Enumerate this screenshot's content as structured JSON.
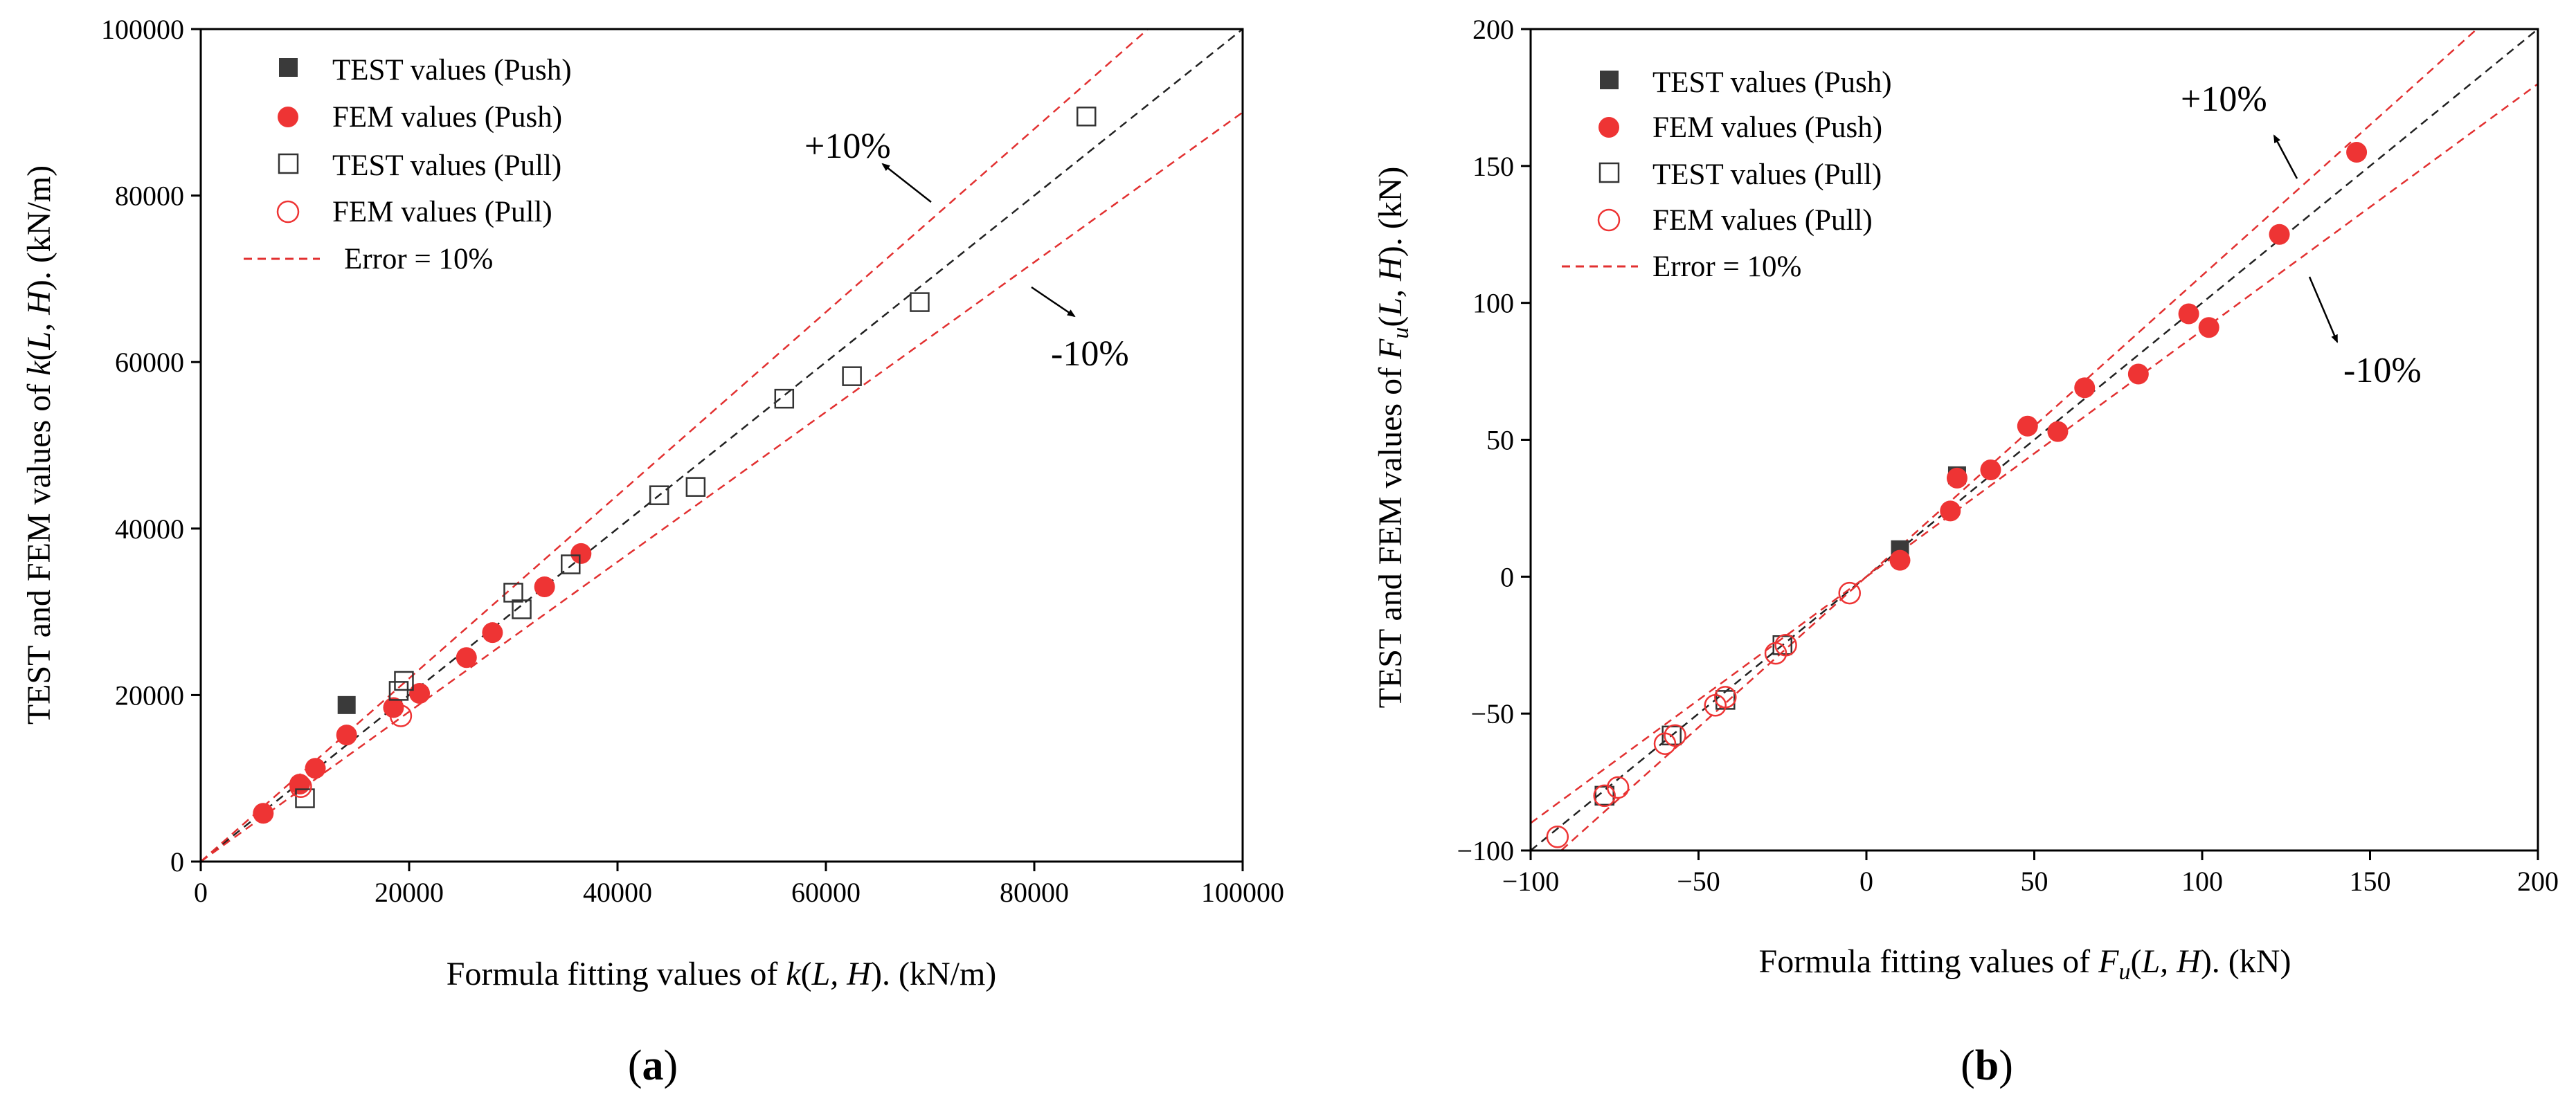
{
  "chart_data": [
    {
      "type": "scatter",
      "panel_label": "a",
      "xlabel": {
        "prefix": "Formula fitting values of ",
        "f": "k",
        "args": "L, H",
        "unit": "(kN/m)"
      },
      "ylabel": {
        "prefix": "TEST and FEM values of ",
        "f": "k",
        "args": "L, H",
        "unit": "(kN/m)"
      },
      "xlim": [
        0,
        100000
      ],
      "ylim": [
        0,
        100000
      ],
      "xticks": [
        "0",
        "20000",
        "40000",
        "60000",
        "80000",
        "100000"
      ],
      "yticks": [
        "0",
        "20000",
        "40000",
        "60000",
        "80000",
        "100000"
      ],
      "legend": [
        "TEST values (Push)",
        "FEM values (Push)",
        "TEST values (Pull)",
        "FEM values (Pull)",
        "Error = 10%"
      ],
      "annotations": {
        "plus": "+10%",
        "minus": "-10%"
      },
      "series": [
        {
          "name": "TEST values (Push)",
          "points": [
            [
              14000,
              18800
            ]
          ]
        },
        {
          "name": "FEM values (Push)",
          "points": [
            [
              6000,
              5800
            ],
            [
              9500,
              9300
            ],
            [
              11000,
              11200
            ],
            [
              14000,
              15200
            ],
            [
              18500,
              18500
            ],
            [
              21000,
              20200
            ],
            [
              25500,
              24500
            ],
            [
              28000,
              27500
            ],
            [
              33000,
              33000
            ],
            [
              36500,
              37000
            ]
          ]
        },
        {
          "name": "TEST values (Pull)",
          "points": [
            [
              10000,
              7600
            ],
            [
              19000,
              20500
            ],
            [
              19500,
              21700
            ],
            [
              30000,
              32300
            ],
            [
              30800,
              30300
            ],
            [
              35500,
              35700
            ],
            [
              44000,
              44000
            ],
            [
              47500,
              45000
            ],
            [
              56000,
              55600
            ],
            [
              62500,
              58300
            ],
            [
              69000,
              67200
            ],
            [
              85000,
              89500
            ]
          ]
        },
        {
          "name": "FEM values (Pull)",
          "points": [
            [
              9600,
              9000
            ],
            [
              19200,
              17500
            ]
          ]
        }
      ]
    },
    {
      "type": "scatter",
      "panel_label": "b",
      "xlabel": {
        "prefix": "Formula fitting values of ",
        "f": "F",
        "sub": "u",
        "args": "L, H",
        "unit": "(kN)"
      },
      "ylabel": {
        "prefix": "TEST and FEM values of ",
        "f": "F",
        "sub": "u",
        "args": "L, H",
        "unit": "(kN)"
      },
      "xlim": [
        -100,
        200
      ],
      "ylim": [
        -100,
        200
      ],
      "xticks": [
        "−100",
        "−50",
        "0",
        "50",
        "100",
        "150",
        "200"
      ],
      "yticks": [
        "−100",
        "−50",
        "0",
        "50",
        "100",
        "150",
        "200"
      ],
      "legend": [
        "TEST values (Push)",
        "FEM values (Push)",
        "TEST values (Pull)",
        "FEM values (Pull)",
        "Error = 10%"
      ],
      "annotations": {
        "plus": "+10%",
        "minus": "-10%"
      },
      "series": [
        {
          "name": "TEST values (Push)",
          "points": [
            [
              10,
              10
            ],
            [
              27,
              37
            ]
          ]
        },
        {
          "name": "FEM values (Push)",
          "points": [
            [
              10,
              6
            ],
            [
              25,
              24
            ],
            [
              27,
              36
            ],
            [
              37,
              39
            ],
            [
              48,
              55
            ],
            [
              57,
              53
            ],
            [
              65,
              69
            ],
            [
              81,
              74
            ],
            [
              96,
              96
            ],
            [
              102,
              91
            ],
            [
              123,
              125
            ],
            [
              146,
              155
            ]
          ]
        },
        {
          "name": "TEST values (Pull)",
          "points": [
            [
              -78,
              -80
            ],
            [
              -58,
              -58
            ],
            [
              -42,
              -45
            ],
            [
              -25,
              -25
            ]
          ]
        },
        {
          "name": "FEM values (Pull)",
          "points": [
            [
              -92,
              -95
            ],
            [
              -78,
              -80
            ],
            [
              -74,
              -77
            ],
            [
              -60,
              -61
            ],
            [
              -57,
              -58
            ],
            [
              -45,
              -47
            ],
            [
              -42,
              -44
            ],
            [
              -27,
              -28
            ],
            [
              -24,
              -25
            ],
            [
              -5,
              -6
            ]
          ]
        }
      ]
    }
  ]
}
